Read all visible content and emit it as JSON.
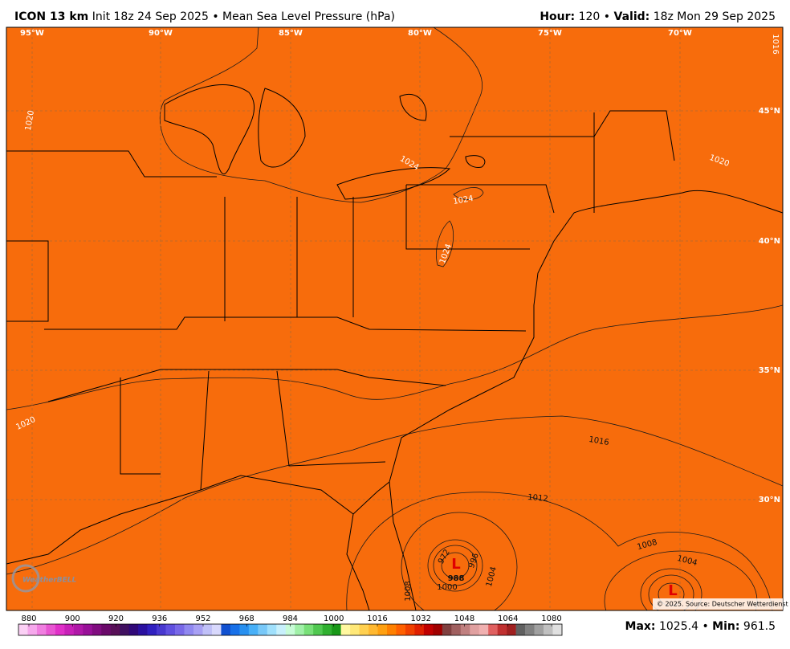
{
  "header": {
    "model": "ICON 13 km",
    "run": "Init 18z 24 Sep 2025",
    "separator": "•",
    "product": "Mean Sea Level Pressure (hPa)",
    "hour_label": "Hour:",
    "hour": 120,
    "valid_label": "Valid:",
    "valid": "18z Mon 29 Sep 2025"
  },
  "map": {
    "longitudes": [
      "95°W",
      "90°W",
      "85°W",
      "80°W",
      "75°W",
      "70°W"
    ],
    "latitudes": [
      "45°N",
      "40°N",
      "35°N",
      "30°N"
    ],
    "contour_labels": [
      "1020",
      "1024",
      "1024",
      "1024",
      "1020",
      "1020",
      "1016",
      "1012",
      "1008",
      "1004",
      "1008",
      "1004",
      "988",
      "1016",
      "972",
      "996",
      "1000"
    ],
    "lows": [
      "L",
      "L"
    ],
    "logo": "WeatherBELL",
    "credit": "© 2025. Source: Deutscher Wetterdienst"
  },
  "colorbar": {
    "ticks": [
      880,
      900,
      920,
      936,
      952,
      968,
      984,
      1000,
      1016,
      1032,
      1048,
      1064,
      1080
    ],
    "colors": [
      "#fbd0f5",
      "#f6a8ec",
      "#f07ee0",
      "#e855d2",
      "#e030c8",
      "#c820b8",
      "#b018a8",
      "#981098",
      "#800c80",
      "#6a0a6a",
      "#581058",
      "#401060",
      "#300878",
      "#2a10a0",
      "#3020c0",
      "#4838d0",
      "#6050e0",
      "#7868e8",
      "#9088f0",
      "#a8a0f4",
      "#c0c0f8",
      "#d8d8fc",
      "#1050d0",
      "#1870e8",
      "#2890f0",
      "#48b0f8",
      "#78c8f8",
      "#a0e0fc",
      "#c8f0fc",
      "#c8fcd8",
      "#a0f0a8",
      "#78e078",
      "#50c850",
      "#30b030",
      "#189818",
      "#fff8a0",
      "#ffe878",
      "#ffd050",
      "#ffb830",
      "#ffa010",
      "#ff8000",
      "#ff6000",
      "#f04000",
      "#e02000",
      "#c00000",
      "#a00000",
      "#804040",
      "#a06060",
      "#c08080",
      "#e0a0a0",
      "#f0b0b0",
      "#e06060",
      "#c03030",
      "#a02020",
      "#606060",
      "#808080",
      "#a0a0a0",
      "#c0c0c0",
      "#e0e0e0"
    ]
  },
  "footer": {
    "max_label": "Max:",
    "max": 1025.4,
    "separator": "•",
    "min_label": "Min:",
    "min": 961.5
  }
}
